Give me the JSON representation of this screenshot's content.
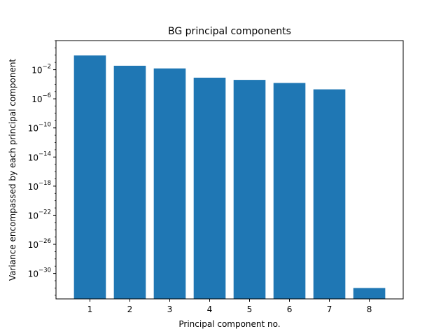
{
  "chart_data": {
    "type": "bar",
    "title": "BG principal components",
    "xlabel": "Principal component no.",
    "ylabel": "Variance encompassed by each principal component",
    "yscale": "log",
    "ylim_exp": [
      -33.5,
      2.0
    ],
    "categories": [
      "1",
      "2",
      "3",
      "4",
      "5",
      "6",
      "7",
      "8"
    ],
    "values": [
      0.9,
      0.035,
      0.015,
      0.0008,
      0.0004,
      0.00015,
      2e-05,
      1e-32
    ],
    "color": "#1f77b4",
    "yticks": [
      {
        "base": "10",
        "exp": "−2",
        "value_exp": -2
      },
      {
        "base": "10",
        "exp": "−6",
        "value_exp": -6
      },
      {
        "base": "10",
        "exp": "−10",
        "value_exp": -10
      },
      {
        "base": "10",
        "exp": "−14",
        "value_exp": -14
      },
      {
        "base": "10",
        "exp": "−18",
        "value_exp": -18
      },
      {
        "base": "10",
        "exp": "−22",
        "value_exp": -22
      },
      {
        "base": "10",
        "exp": "−26",
        "value_exp": -26
      },
      {
        "base": "10",
        "exp": "−30",
        "value_exp": -30
      }
    ],
    "grid": false,
    "legend": "none"
  }
}
